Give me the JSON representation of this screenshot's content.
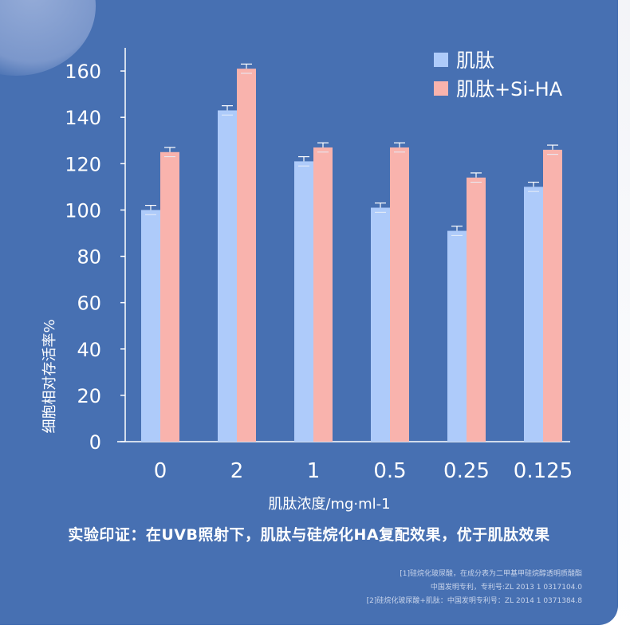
{
  "colors": {
    "background": "#4770b2",
    "series_peptide": "#aecbfa",
    "series_peptide_si_ha": "#f9b3ad",
    "axis": "#ffffff"
  },
  "chart_data": {
    "type": "bar",
    "categories": [
      "0",
      "2",
      "1",
      "0.5",
      "0.25",
      "0.125"
    ],
    "series": [
      {
        "name": "肌肽",
        "values": [
          100,
          143,
          121,
          101,
          91,
          110
        ],
        "errors": [
          2,
          2,
          2,
          2,
          2,
          2
        ]
      },
      {
        "name": "肌肽+Si-HA",
        "values": [
          125,
          161,
          127,
          127,
          114,
          126
        ],
        "errors": [
          2,
          2,
          2,
          2,
          2,
          2
        ]
      }
    ],
    "xlabel": "肌肽浓度/mg·ml-1",
    "ylabel": "细胞相对存活率%",
    "ylim": [
      0,
      170
    ],
    "yticks": [
      0,
      20,
      40,
      60,
      80,
      100,
      120,
      140,
      160
    ],
    "legend_position": "top-right",
    "grid": false
  },
  "conclusion": "实验印证：在UVB照射下，肌肽与硅烷化HA复配效果，优于肌肽效果",
  "references": [
    "[1]硅烷化玻尿酸，在成分表为二甲基甲硅烷醇透明质酸酯",
    "中国发明专利，专利号:ZL 2013 1 0317104.0",
    "[2]硅烷化玻尿酸+肌肽：中国发明专利号：ZL 2014 1 0371384.8"
  ]
}
